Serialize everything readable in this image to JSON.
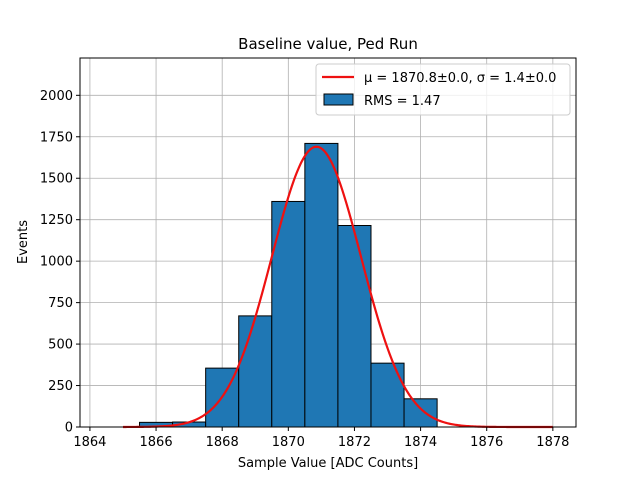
{
  "chart_data": {
    "type": "bar",
    "title": "Baseline value, Ped Run",
    "xlabel": "Sample Value [ADC Counts]",
    "ylabel": "Events",
    "xlim": [
      1863.7,
      1878.7
    ],
    "ylim": [
      0,
      2225
    ],
    "grid": true,
    "legend_position": "top-right",
    "x_ticks": [
      1864,
      1866,
      1868,
      1870,
      1872,
      1874,
      1876,
      1878
    ],
    "y_ticks": [
      0,
      250,
      500,
      750,
      1000,
      1250,
      1500,
      1750,
      2000
    ],
    "histogram": {
      "name": "RMS = 1.47",
      "color": "#1f77b4",
      "edge_color": "#000000",
      "bins": [
        {
          "left": 1865.5,
          "right": 1866.5,
          "value": 28
        },
        {
          "left": 1866.5,
          "right": 1867.5,
          "value": 30
        },
        {
          "left": 1867.5,
          "right": 1868.5,
          "value": 355
        },
        {
          "left": 1868.5,
          "right": 1869.5,
          "value": 670
        },
        {
          "left": 1869.5,
          "right": 1870.5,
          "value": 1360
        },
        {
          "left": 1870.5,
          "right": 1871.5,
          "value": 1710
        },
        {
          "left": 1871.5,
          "right": 1872.5,
          "value": 1215
        },
        {
          "left": 1872.5,
          "right": 1873.5,
          "value": 385
        },
        {
          "left": 1873.5,
          "right": 1874.5,
          "value": 170
        }
      ]
    },
    "fit": {
      "name_mu": "μ = 1870.8±0.0",
      "name_sigma": "σ = 1.4±0.0",
      "name_separator": ", ",
      "color": "#ee1111",
      "type": "gaussian",
      "mu": 1870.85,
      "sigma": 1.35,
      "amplitude": 1690,
      "x_range": [
        1865.0,
        1878.0
      ]
    }
  }
}
